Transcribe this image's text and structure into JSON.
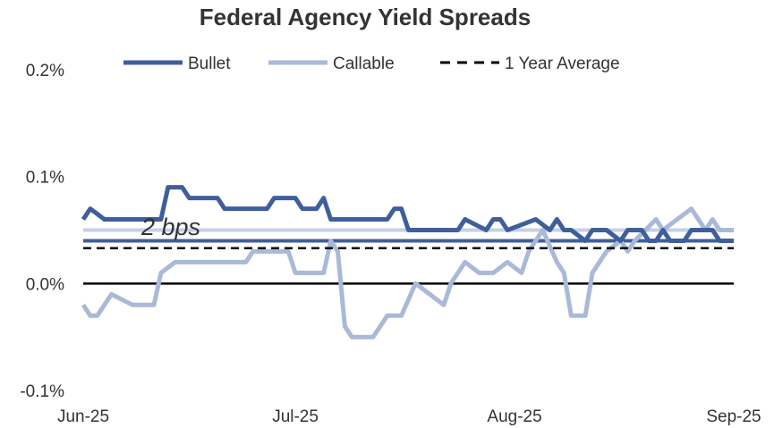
{
  "chart_data": {
    "type": "line",
    "title": "Federal Agency Yield Spreads",
    "xlabel": "",
    "ylabel": "",
    "y_ticks": [
      "0.2%",
      "0.1%",
      "0.0%",
      "-0.1%"
    ],
    "y_tick_values": [
      0.2,
      0.1,
      0.0,
      -0.1
    ],
    "ylim": [
      -0.1,
      0.2
    ],
    "x_ticks": [
      "Jun-25",
      "Jul-25",
      "Aug-25",
      "Sep-25"
    ],
    "x_tick_dates": [
      "2025-06-01",
      "2025-07-01",
      "2025-08-01",
      "2025-09-01"
    ],
    "xlim": [
      "2025-06-01",
      "2025-09-01"
    ],
    "legend_position": "top",
    "annotation": "2 bps",
    "grid": false,
    "zero_line": true,
    "series": [
      {
        "name": "Bullet",
        "color": "#3f5e9c",
        "style": "solid",
        "points": [
          [
            "2025-06-01",
            0.06
          ],
          [
            "2025-06-02",
            0.07
          ],
          [
            "2025-06-04",
            0.06
          ],
          [
            "2025-06-09",
            0.06
          ],
          [
            "2025-06-12",
            0.06
          ],
          [
            "2025-06-13",
            0.09
          ],
          [
            "2025-06-15",
            0.09
          ],
          [
            "2025-06-16",
            0.08
          ],
          [
            "2025-06-20",
            0.08
          ],
          [
            "2025-06-21",
            0.07
          ],
          [
            "2025-06-27",
            0.07
          ],
          [
            "2025-06-28",
            0.08
          ],
          [
            "2025-07-01",
            0.08
          ],
          [
            "2025-07-02",
            0.07
          ],
          [
            "2025-07-04",
            0.07
          ],
          [
            "2025-07-05",
            0.08
          ],
          [
            "2025-07-06",
            0.06
          ],
          [
            "2025-07-10",
            0.06
          ],
          [
            "2025-07-12",
            0.06
          ],
          [
            "2025-07-14",
            0.06
          ],
          [
            "2025-07-15",
            0.07
          ],
          [
            "2025-07-16",
            0.07
          ],
          [
            "2025-07-17",
            0.05
          ],
          [
            "2025-07-24",
            0.05
          ],
          [
            "2025-07-25",
            0.06
          ],
          [
            "2025-07-28",
            0.05
          ],
          [
            "2025-07-29",
            0.06
          ],
          [
            "2025-07-30",
            0.06
          ],
          [
            "2025-07-31",
            0.05
          ],
          [
            "2025-08-04",
            0.06
          ],
          [
            "2025-08-06",
            0.05
          ],
          [
            "2025-08-07",
            0.06
          ],
          [
            "2025-08-08",
            0.05
          ],
          [
            "2025-08-09",
            0.05
          ],
          [
            "2025-08-11",
            0.04
          ],
          [
            "2025-08-12",
            0.05
          ],
          [
            "2025-08-14",
            0.05
          ],
          [
            "2025-08-16",
            0.04
          ],
          [
            "2025-08-17",
            0.05
          ],
          [
            "2025-08-19",
            0.05
          ],
          [
            "2025-08-20",
            0.04
          ],
          [
            "2025-08-21",
            0.04
          ],
          [
            "2025-08-22",
            0.05
          ],
          [
            "2025-08-23",
            0.04
          ],
          [
            "2025-08-25",
            0.04
          ],
          [
            "2025-08-26",
            0.05
          ],
          [
            "2025-08-29",
            0.05
          ],
          [
            "2025-08-30",
            0.04
          ],
          [
            "2025-09-01",
            0.04
          ]
        ]
      },
      {
        "name": "Callable",
        "color": "#aab9d8",
        "style": "solid",
        "points": [
          [
            "2025-06-01",
            -0.02
          ],
          [
            "2025-06-02",
            -0.03
          ],
          [
            "2025-06-03",
            -0.03
          ],
          [
            "2025-06-05",
            -0.01
          ],
          [
            "2025-06-08",
            -0.02
          ],
          [
            "2025-06-11",
            -0.02
          ],
          [
            "2025-06-12",
            0.01
          ],
          [
            "2025-06-14",
            0.02
          ],
          [
            "2025-06-19",
            0.02
          ],
          [
            "2025-06-24",
            0.02
          ],
          [
            "2025-06-25",
            0.03
          ],
          [
            "2025-06-30",
            0.03
          ],
          [
            "2025-07-01",
            0.01
          ],
          [
            "2025-07-05",
            0.01
          ],
          [
            "2025-07-06",
            0.04
          ],
          [
            "2025-07-07",
            0.03
          ],
          [
            "2025-07-08",
            -0.04
          ],
          [
            "2025-07-09",
            -0.05
          ],
          [
            "2025-07-12",
            -0.05
          ],
          [
            "2025-07-14",
            -0.03
          ],
          [
            "2025-07-16",
            -0.03
          ],
          [
            "2025-07-18",
            0.0
          ],
          [
            "2025-07-22",
            -0.02
          ],
          [
            "2025-07-23",
            0.0
          ],
          [
            "2025-07-25",
            0.02
          ],
          [
            "2025-07-27",
            0.01
          ],
          [
            "2025-07-29",
            0.01
          ],
          [
            "2025-07-31",
            0.02
          ],
          [
            "2025-08-02",
            0.01
          ],
          [
            "2025-08-03",
            0.03
          ],
          [
            "2025-08-05",
            0.05
          ],
          [
            "2025-08-07",
            0.02
          ],
          [
            "2025-08-08",
            0.01
          ],
          [
            "2025-08-09",
            -0.03
          ],
          [
            "2025-08-11",
            -0.03
          ],
          [
            "2025-08-12",
            0.01
          ],
          [
            "2025-08-14",
            0.03
          ],
          [
            "2025-08-16",
            0.04
          ],
          [
            "2025-08-17",
            0.03
          ],
          [
            "2025-08-18",
            0.04
          ],
          [
            "2025-08-21",
            0.06
          ],
          [
            "2025-08-22",
            0.05
          ],
          [
            "2025-08-24",
            0.06
          ],
          [
            "2025-08-26",
            0.07
          ],
          [
            "2025-08-27",
            0.06
          ],
          [
            "2025-08-28",
            0.05
          ],
          [
            "2025-08-29",
            0.06
          ],
          [
            "2025-08-30",
            0.05
          ],
          [
            "2025-09-01",
            0.05
          ]
        ]
      },
      {
        "name": "1 Year Average",
        "color": "#000000",
        "style": "dashed",
        "points": [
          [
            "2025-06-01",
            0.033
          ],
          [
            "2025-09-01",
            0.033
          ]
        ]
      }
    ],
    "reference_lines": [
      {
        "y": 0.04,
        "color": "#3f5e9c"
      },
      {
        "y": 0.05,
        "color": "#c4d0e6"
      }
    ]
  }
}
